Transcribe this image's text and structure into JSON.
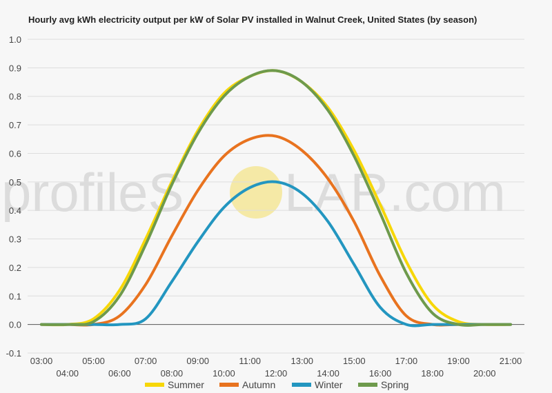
{
  "chart_data": {
    "type": "line",
    "title": "Hourly avg kWh electricity output per kW of Solar PV installed in Walnut Creek, United States (by season)",
    "xlabel": "",
    "ylabel": "",
    "ylim": [
      -0.1,
      1.0
    ],
    "yticks": [
      "-0.1",
      "0.0",
      "0.1",
      "0.2",
      "0.3",
      "0.4",
      "0.5",
      "0.6",
      "0.7",
      "0.8",
      "0.9",
      "1.0"
    ],
    "x": [
      "03:00",
      "04:00",
      "05:00",
      "06:00",
      "07:00",
      "08:00",
      "09:00",
      "10:00",
      "11:00",
      "12:00",
      "13:00",
      "14:00",
      "15:00",
      "16:00",
      "17:00",
      "18:00",
      "19:00",
      "20:00",
      "21:00"
    ],
    "grid": true,
    "legend_position": "bottom",
    "series": [
      {
        "name": "Summer",
        "color": "#f7d708",
        "values": [
          0.0,
          0.0,
          0.02,
          0.12,
          0.3,
          0.5,
          0.68,
          0.81,
          0.87,
          0.89,
          0.85,
          0.76,
          0.61,
          0.42,
          0.22,
          0.07,
          0.01,
          0.0,
          0.0
        ]
      },
      {
        "name": "Autumn",
        "color": "#e8731f",
        "values": [
          0.0,
          0.0,
          0.0,
          0.03,
          0.14,
          0.31,
          0.47,
          0.59,
          0.65,
          0.66,
          0.61,
          0.51,
          0.36,
          0.17,
          0.03,
          0.0,
          0.0,
          0.0,
          0.0
        ]
      },
      {
        "name": "Winter",
        "color": "#2396c0",
        "values": [
          0.0,
          0.0,
          0.0,
          0.0,
          0.02,
          0.15,
          0.29,
          0.41,
          0.48,
          0.5,
          0.46,
          0.36,
          0.21,
          0.06,
          0.0,
          0.0,
          0.0,
          0.0,
          0.0
        ]
      },
      {
        "name": "Spring",
        "color": "#6e9a4c",
        "values": [
          0.0,
          0.0,
          0.01,
          0.1,
          0.28,
          0.49,
          0.67,
          0.8,
          0.87,
          0.89,
          0.85,
          0.75,
          0.59,
          0.39,
          0.18,
          0.04,
          0.0,
          0.0,
          0.0
        ]
      }
    ]
  },
  "watermark": {
    "text_left": "profileS",
    "text_right": "LAR.com",
    "sun_color": "#f5e9a6"
  }
}
